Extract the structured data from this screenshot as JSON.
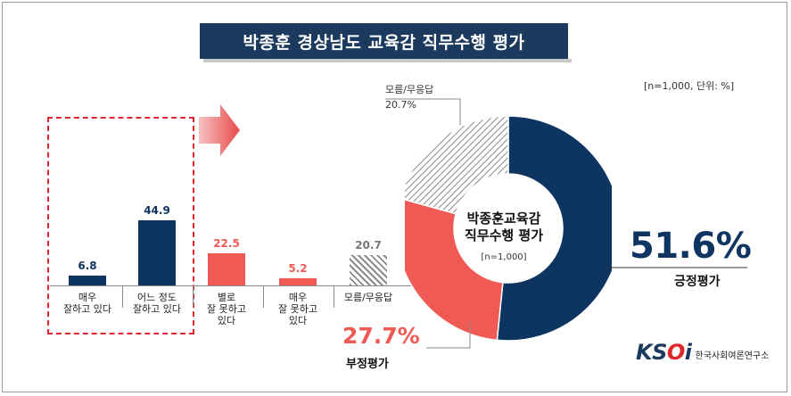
{
  "title": "박종훈 경상남도 교육감 직무수행 평가",
  "note": "[n=1,000,  단위: %]",
  "colors": {
    "positive": "#0e3561",
    "negative": "#f05a55",
    "unknown": "#9a9a9a",
    "accent": "#e0262a"
  },
  "chart_data": [
    {
      "type": "bar",
      "categories": [
        "매우\n잘하고 있다",
        "어느 정도\n잘하고 있다",
        "별로\n잘 못하고\n있다",
        "매우\n잘 못하고\n있다",
        "모름/무응답"
      ],
      "values": [
        6.8,
        44.9,
        22.5,
        5.2,
        20.7
      ],
      "value_labels": [
        "6.8",
        "44.9",
        "22.5",
        "5.2",
        "20.7"
      ],
      "colors": [
        "#0e3561",
        "#0e3561",
        "#f05a55",
        "#f05a55",
        "hatched-gray"
      ]
    },
    {
      "type": "pie",
      "center_title": "박종훈교육감\n직무수행 평가",
      "center_sub": "[n=1,000]",
      "slices": [
        {
          "label": "긍정평가",
          "value": 51.6,
          "value_label": "51.6%",
          "color": "#0e3561"
        },
        {
          "label": "부정평가",
          "value": 27.7,
          "value_label": "27.7%",
          "color": "#f05a55"
        },
        {
          "label": "모름/무응답",
          "value": 20.7,
          "value_label": "20.7%",
          "color": "hatched-gray"
        }
      ]
    }
  ],
  "logo": {
    "mark_a": "KS",
    "mark_o": "O",
    "mark_b": "i",
    "name": "한국사회여론연구소"
  }
}
